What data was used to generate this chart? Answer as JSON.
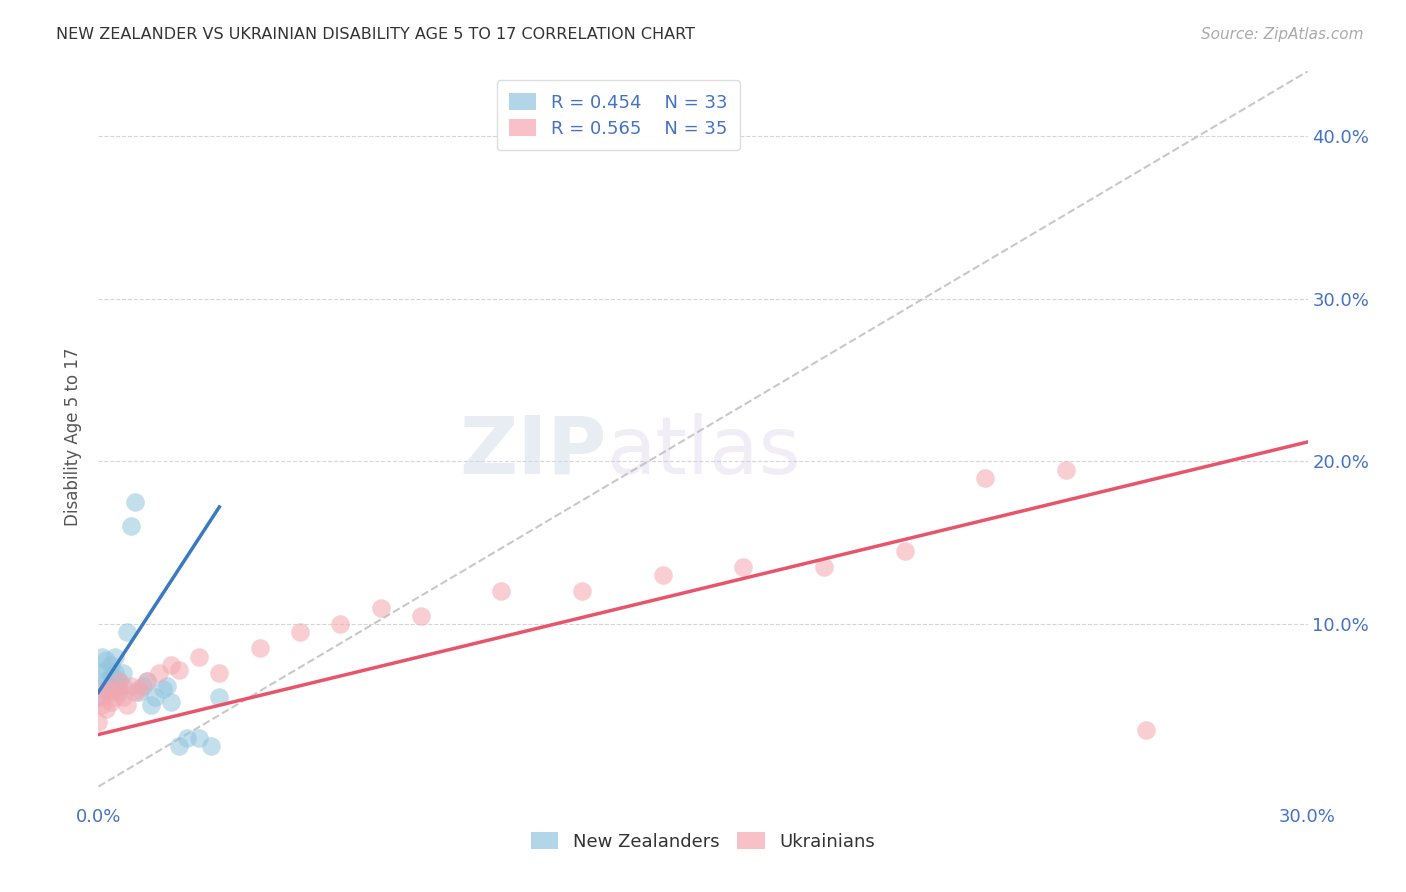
{
  "title": "NEW ZEALANDER VS UKRAINIAN DISABILITY AGE 5 TO 17 CORRELATION CHART",
  "source": "Source: ZipAtlas.com",
  "ylabel": "Disability Age 5 to 17",
  "xlim": [
    0.0,
    0.3
  ],
  "ylim": [
    -0.01,
    0.44
  ],
  "blue_color": "#92c5de",
  "pink_color": "#f4a7b0",
  "blue_line_color": "#3a7abf",
  "pink_line_color": "#e8546a",
  "diag_color": "#bbbbbb",
  "grid_color": "#cccccc",
  "nz_x": [
    0.0,
    0.001,
    0.001,
    0.001,
    0.002,
    0.002,
    0.002,
    0.003,
    0.003,
    0.003,
    0.004,
    0.004,
    0.004,
    0.005,
    0.005,
    0.006,
    0.006,
    0.007,
    0.008,
    0.009,
    0.01,
    0.011,
    0.012,
    0.013,
    0.014,
    0.016,
    0.017,
    0.018,
    0.02,
    0.022,
    0.025,
    0.028,
    0.03
  ],
  "nz_y": [
    0.055,
    0.06,
    0.07,
    0.08,
    0.065,
    0.072,
    0.078,
    0.06,
    0.068,
    0.075,
    0.062,
    0.07,
    0.08,
    0.058,
    0.065,
    0.07,
    0.062,
    0.095,
    0.16,
    0.175,
    0.058,
    0.062,
    0.065,
    0.05,
    0.055,
    0.06,
    0.062,
    0.052,
    0.025,
    0.03,
    0.03,
    0.025,
    0.055
  ],
  "uk_x": [
    0.0,
    0.001,
    0.001,
    0.002,
    0.002,
    0.003,
    0.003,
    0.004,
    0.005,
    0.005,
    0.006,
    0.007,
    0.008,
    0.009,
    0.01,
    0.012,
    0.015,
    0.018,
    0.02,
    0.025,
    0.03,
    0.04,
    0.05,
    0.06,
    0.07,
    0.08,
    0.1,
    0.12,
    0.14,
    0.16,
    0.18,
    0.2,
    0.22,
    0.24,
    0.26
  ],
  "uk_y": [
    0.04,
    0.05,
    0.055,
    0.048,
    0.06,
    0.052,
    0.058,
    0.055,
    0.06,
    0.065,
    0.055,
    0.05,
    0.062,
    0.058,
    0.06,
    0.065,
    0.07,
    0.075,
    0.072,
    0.08,
    0.07,
    0.085,
    0.095,
    0.1,
    0.11,
    0.105,
    0.12,
    0.12,
    0.13,
    0.135,
    0.135,
    0.145,
    0.19,
    0.195,
    0.035
  ],
  "nz_line_x": [
    0.0,
    0.03
  ],
  "nz_line_y_intercept": 0.058,
  "nz_line_slope": 3.8,
  "uk_line_x": [
    0.0,
    0.3
  ],
  "uk_line_y_intercept": 0.032,
  "uk_line_slope": 0.6
}
